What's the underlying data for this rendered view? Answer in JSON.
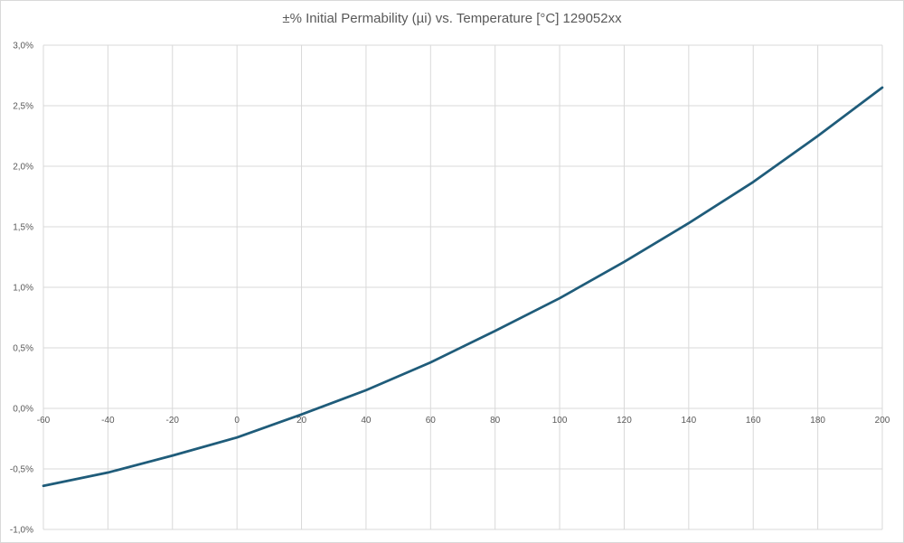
{
  "chart_data": {
    "type": "line",
    "title": "±% Initial Permability (µi) vs. Temperature [°C] 129052xx",
    "xlabel": "",
    "ylabel": "",
    "xlim": [
      -60,
      200
    ],
    "ylim": [
      -1.0,
      3.0
    ],
    "x_ticks": [
      -60,
      -40,
      -20,
      0,
      20,
      40,
      60,
      80,
      100,
      120,
      140,
      160,
      180,
      200
    ],
    "x_tick_labels": [
      "-60",
      "-40",
      "-20",
      "0",
      "20",
      "40",
      "60",
      "80",
      "100",
      "120",
      "140",
      "160",
      "180",
      "200"
    ],
    "y_ticks": [
      -1.0,
      -0.5,
      0.0,
      0.5,
      1.0,
      1.5,
      2.0,
      2.5,
      3.0
    ],
    "y_tick_labels": [
      "-1,0%",
      "-0,5%",
      "0,0%",
      "0,5%",
      "1,0%",
      "1,5%",
      "2,0%",
      "2,5%",
      "3,0%"
    ],
    "grid": true,
    "legend": "none",
    "series": [
      {
        "color": "#1f5c7a",
        "x": [
          -60,
          -40,
          -20,
          0,
          20,
          40,
          60,
          80,
          100,
          120,
          140,
          160,
          180,
          200
        ],
        "y": [
          -0.64,
          -0.53,
          -0.39,
          -0.24,
          -0.05,
          0.15,
          0.38,
          0.64,
          0.91,
          1.21,
          1.53,
          1.87,
          2.25,
          2.65
        ]
      }
    ],
    "colors": {
      "grid": "#d9d9d9",
      "axis_text": "#595959"
    }
  }
}
